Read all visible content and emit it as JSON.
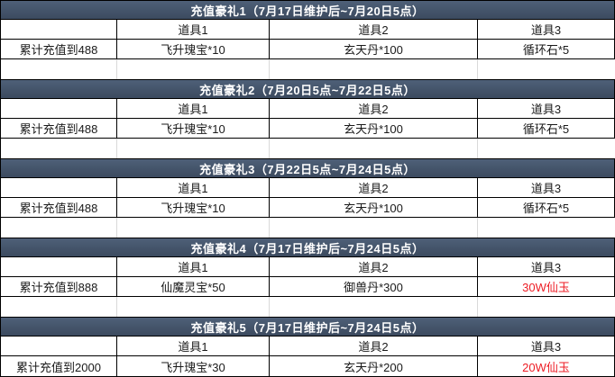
{
  "colors": {
    "page_bg": "#ffffff",
    "title_bar_bg": "#44546a",
    "title_bar_bg_top": "#4f6078",
    "title_bar_bg_bottom": "#3c4a5f",
    "title_text": "#ffffff",
    "body_text": "#1a1a1a",
    "table_border": "#000000",
    "faint_grid": "#d9d9d9",
    "highlight_red": "#ed1c24"
  },
  "item_headers": [
    "道具1",
    "道具2",
    "道具3"
  ],
  "sections": [
    {
      "title": "充值豪礼1（7月17日维护后~7月20日5点）",
      "threshold": "累计充值到488",
      "items": [
        "飞升瑰宝*10",
        "玄天丹*100",
        "循环石*5"
      ]
    },
    {
      "title": "充值豪礼2（7月20日5点~7月22日5点）",
      "threshold": "累计充值到488",
      "items": [
        "飞升瑰宝*10",
        "玄天丹*100",
        "循环石*5"
      ]
    },
    {
      "title": "充值豪礼3（7月22日5点~7月24日5点）",
      "threshold": "累计充值到488",
      "items": [
        "飞升瑰宝*10",
        "玄天丹*100",
        "循环石*5"
      ]
    },
    {
      "title": "充值豪礼4（7月17日维护后~7月24日5点）",
      "threshold": "累计充值到888",
      "items": [
        "仙魔灵宝*50",
        "御兽丹*300",
        "30W仙玉"
      ]
    },
    {
      "title": "充值豪礼5（7月17日维护后~7月24日5点）",
      "threshold": "累计充值到2000",
      "items": [
        "飞升瑰宝*30",
        "玄天丹*200",
        "20W仙玉"
      ]
    }
  ]
}
